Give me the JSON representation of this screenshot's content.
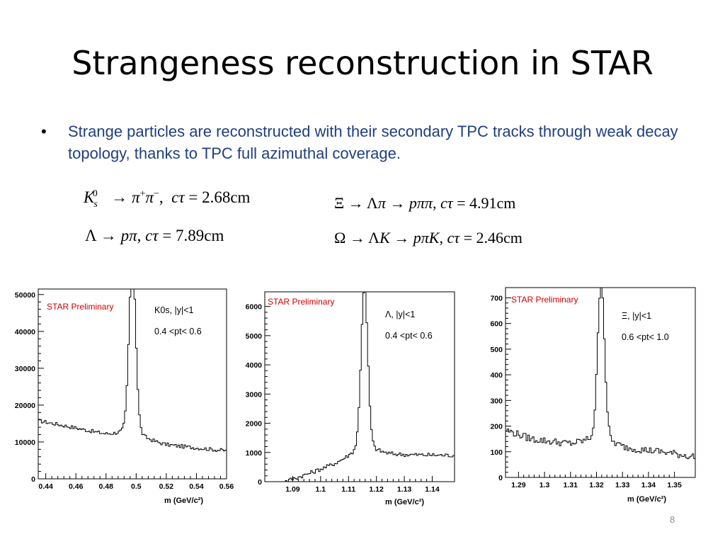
{
  "slide": {
    "title": "Strangeness reconstruction in STAR",
    "bullet": "Strange particles are reconstructed with their secondary TPC tracks through weak decay topology, thanks to TPC full azimuthal coverage.",
    "page_number": "8",
    "text_color": "#1f3f7f"
  },
  "equations": [
    "K_s^0 → π+π−, cτ = 2.68cm",
    "Λ → pπ, cτ = 7.89cm",
    "Ξ → Λπ → pππ, cτ = 4.91cm",
    "Ω → ΛK → pπK, cτ = 2.46cm"
  ],
  "chart_data": [
    {
      "type": "line",
      "label": "STAR Preliminary",
      "annotation_line1": "K0s, |y|<1",
      "annotation_line2": "0.4 <pt< 0.6",
      "xlabel": "m (GeV/c²)",
      "xlim": [
        0.435,
        0.56
      ],
      "ylim": [
        0,
        51500
      ],
      "xticks": [
        "0.44",
        "0.46",
        "0.48",
        "0.5",
        "0.52",
        "0.54",
        "0.56"
      ],
      "yticks": [
        "0",
        "10000",
        "20000",
        "30000",
        "40000",
        "50000"
      ],
      "peak": {
        "x": 0.4975,
        "height": 45000,
        "width": 0.0022
      },
      "background": {
        "points": [
          [
            0.435,
            15800
          ],
          [
            0.46,
            13800
          ],
          [
            0.48,
            12000
          ],
          [
            0.495,
            11600
          ],
          [
            0.505,
            10500
          ],
          [
            0.52,
            9200
          ],
          [
            0.54,
            8400
          ],
          [
            0.56,
            7600
          ]
        ]
      },
      "noise": 500,
      "line_color": "#000000",
      "label_color": "#cc0000"
    },
    {
      "type": "line",
      "label": "STAR Preliminary",
      "annotation_line1": "Λ, |y|<1",
      "annotation_line2": "0.4 <pt< 0.6",
      "xlabel": "m (GeV/c²)",
      "xlim": [
        1.08,
        1.148
      ],
      "ylim": [
        0,
        6500
      ],
      "xticks": [
        "1.09",
        "1.1",
        "1.11",
        "1.12",
        "1.13",
        "1.14"
      ],
      "yticks": [
        "0",
        "1000",
        "2000",
        "3000",
        "4000",
        "5000",
        "6000"
      ],
      "peak": {
        "x": 1.1157,
        "height": 5300,
        "width": 0.0012
      },
      "background": {
        "points": [
          [
            1.08,
            0
          ],
          [
            1.087,
            0
          ],
          [
            1.095,
            250
          ],
          [
            1.105,
            600
          ],
          [
            1.112,
            900
          ],
          [
            1.118,
            1000
          ],
          [
            1.125,
            930
          ],
          [
            1.148,
            900
          ]
        ]
      },
      "noise": 70,
      "line_color": "#000000",
      "label_color": "#cc0000"
    },
    {
      "type": "line",
      "label": "STAR Preliminary",
      "annotation_line1": "Ξ, |y|<1",
      "annotation_line2": "0.6 <pt< 1.0",
      "xlabel": "m (GeV/c²)",
      "xlim": [
        1.285,
        1.358
      ],
      "ylim": [
        0,
        740
      ],
      "xticks": [
        "1.29",
        "1.3",
        "1.31",
        "1.32",
        "1.33",
        "1.34",
        "1.35"
      ],
      "yticks": [
        "0",
        "100",
        "200",
        "300",
        "400",
        "500",
        "600",
        "700"
      ],
      "peak": {
        "x": 1.3218,
        "height": 590,
        "width": 0.0013
      },
      "background": {
        "points": [
          [
            1.285,
            185
          ],
          [
            1.295,
            150
          ],
          [
            1.31,
            130
          ],
          [
            1.32,
            140
          ],
          [
            1.33,
            115
          ],
          [
            1.345,
            100
          ],
          [
            1.358,
            80
          ]
        ]
      },
      "noise": 14,
      "line_color": "#000000",
      "label_color": "#cc0000"
    }
  ]
}
